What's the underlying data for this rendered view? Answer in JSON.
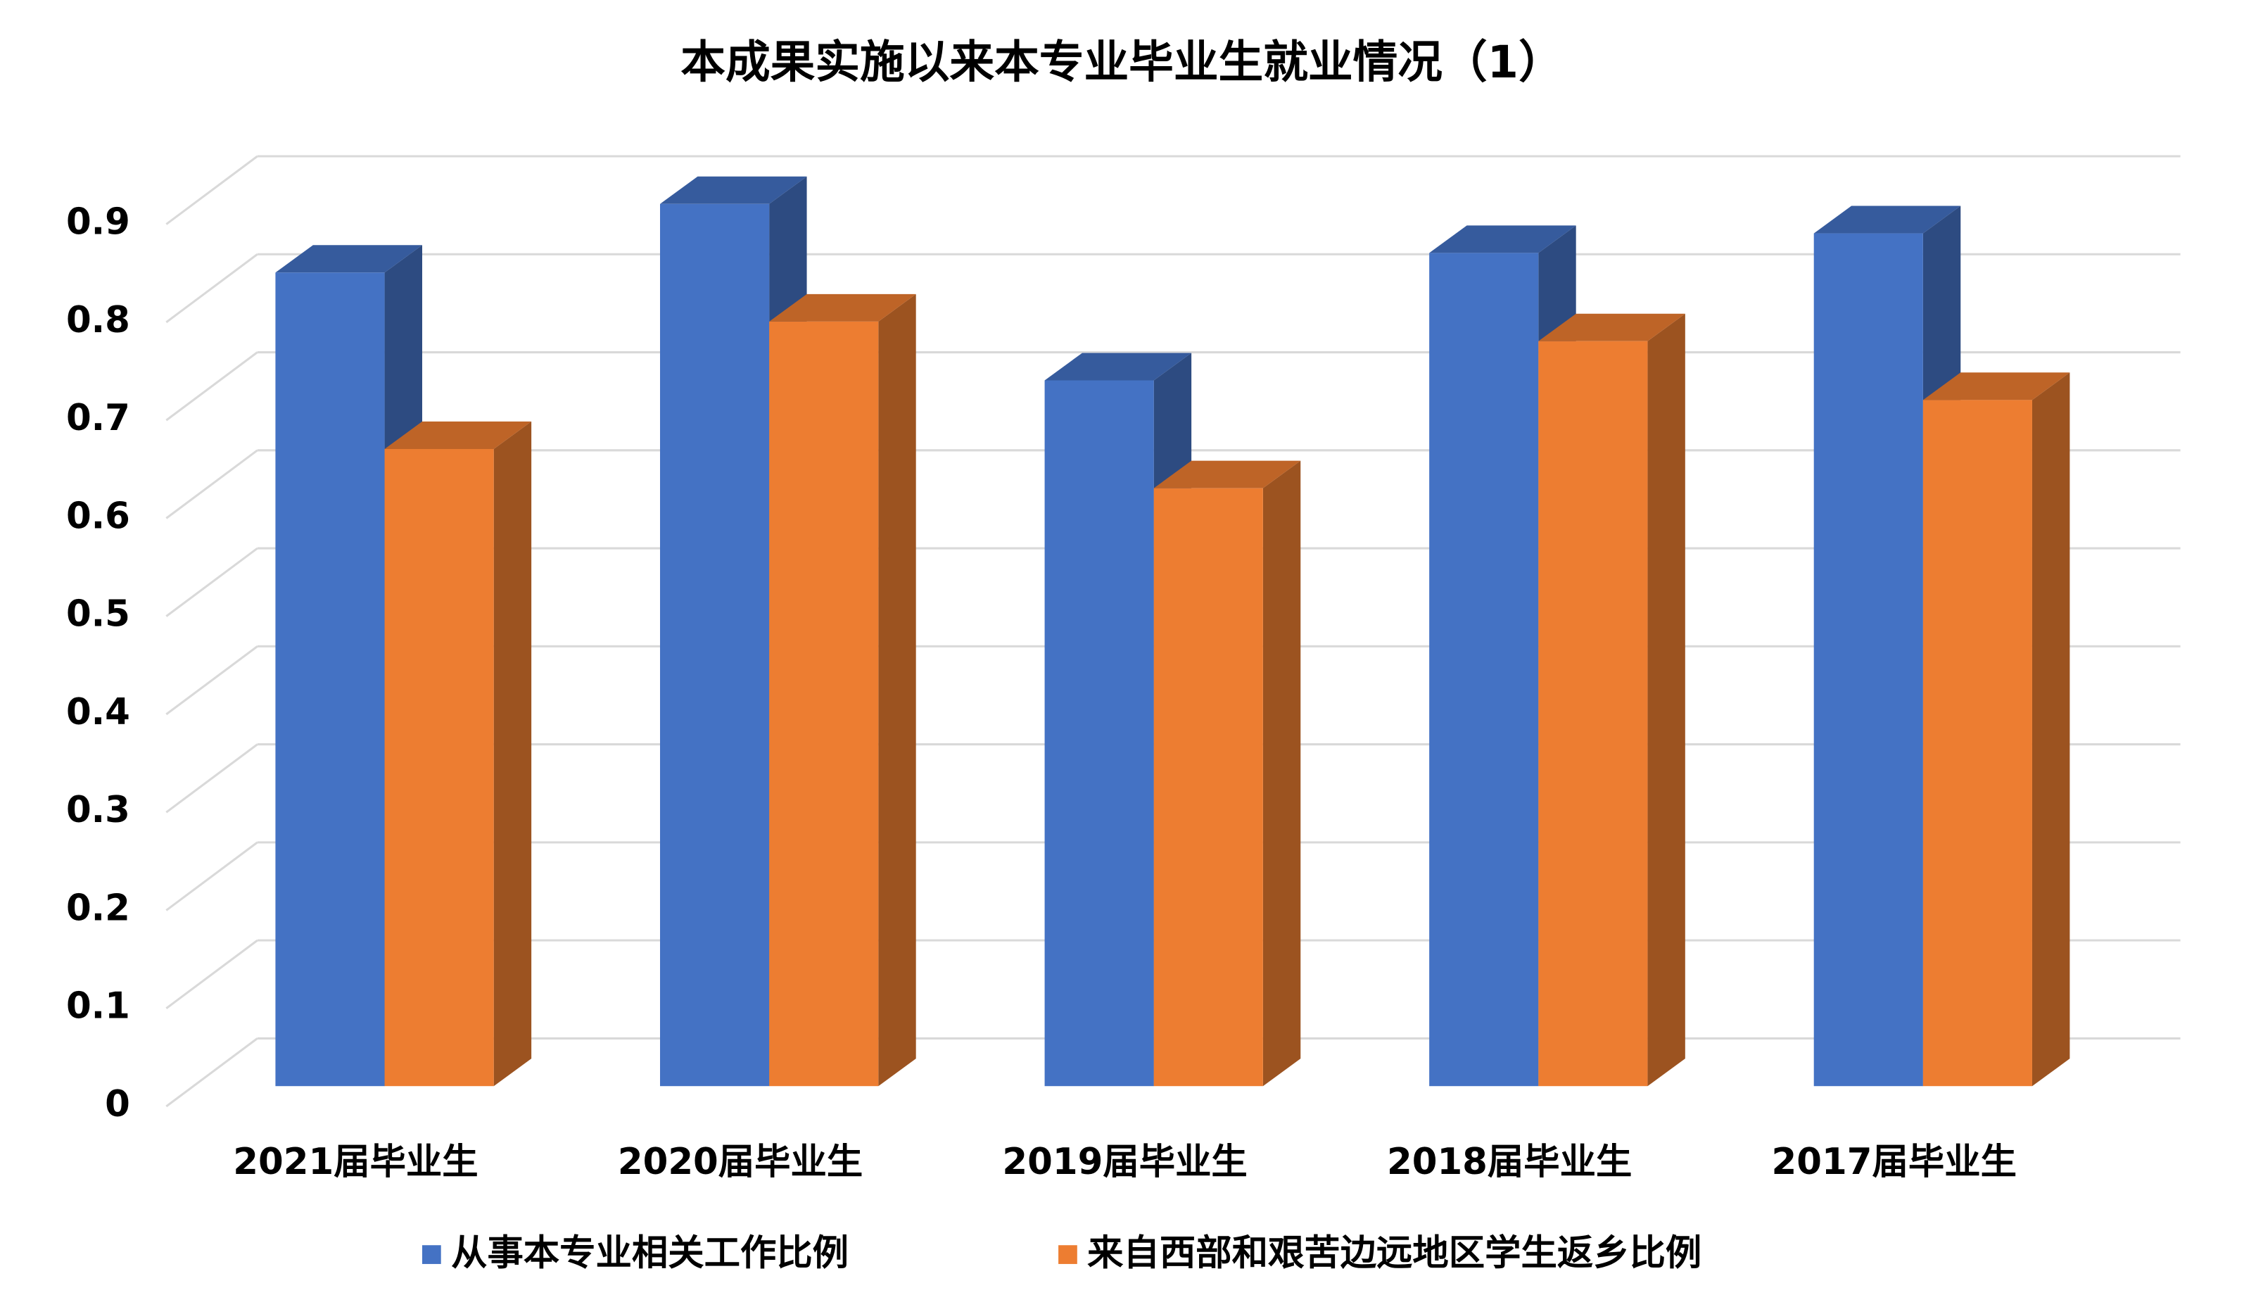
{
  "chart_data": {
    "type": "bar3d",
    "title": "本成果实施以来本专业毕业生就业情况（1）",
    "categories": [
      "2021届毕业生",
      "2020届毕业生",
      "2019届毕业生",
      "2018届毕业生",
      "2017届毕业生"
    ],
    "series": [
      {
        "name": "从事本专业相关工作比例",
        "color": "#4472c4",
        "values": [
          0.83,
          0.9,
          0.72,
          0.85,
          0.87
        ]
      },
      {
        "name": "来自西部和艰苦边远地区学生返乡比例",
        "color": "#ed7d31",
        "values": [
          0.65,
          0.78,
          0.61,
          0.76,
          0.7
        ]
      }
    ],
    "ylim": [
      0,
      0.9
    ],
    "yticks": [
      0,
      0.1,
      0.2,
      0.3,
      0.4,
      0.5,
      0.6,
      0.7,
      0.8,
      0.9
    ],
    "grid": true,
    "legend": "bottom"
  }
}
